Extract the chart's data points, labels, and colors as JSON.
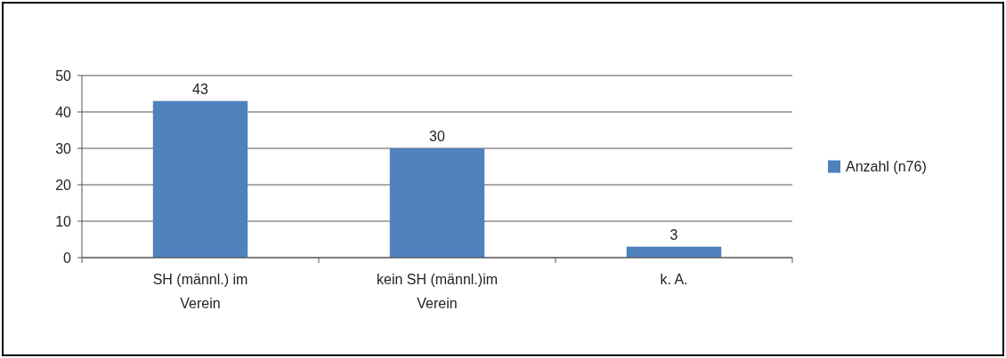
{
  "chart_data": {
    "type": "bar",
    "categories": [
      "SH (männl.) im Verein",
      "kein SH (männl.)im Verein",
      "k. A."
    ],
    "series": [
      {
        "name": "Anzahl (n76)",
        "color": "#4f81bd",
        "values": [
          43,
          30,
          3
        ]
      }
    ],
    "ylim": [
      0,
      50
    ],
    "yticks": [
      0,
      10,
      20,
      30,
      40,
      50
    ],
    "grid": "y",
    "legend": "right",
    "data_labels": true
  }
}
